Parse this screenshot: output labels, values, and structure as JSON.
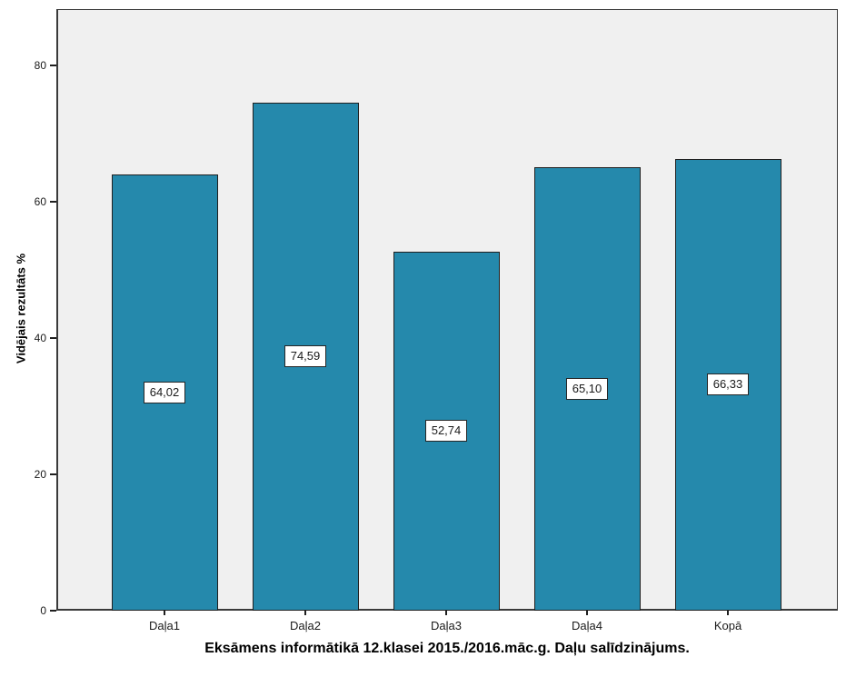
{
  "chart_data": {
    "type": "bar",
    "categories": [
      "Daļa1",
      "Daļa2",
      "Daļa3",
      "Daļa4",
      "Kopā"
    ],
    "values": [
      64.02,
      74.59,
      52.74,
      65.1,
      66.33
    ],
    "value_labels": [
      "64,02",
      "74,59",
      "52,74",
      "65,10",
      "66,33"
    ],
    "title": "Eksāmens informātikā 12.klasei 2015./2016.māc.g. Daļu salīdzinājums.",
    "xlabel": "",
    "ylabel": "Vidējais rezultāts %",
    "ylim": [
      0,
      88.3
    ],
    "yticks": [
      0,
      20,
      40,
      60,
      80
    ],
    "grid": false,
    "legend": "none",
    "colors": {
      "bar_fill": "#2589AC",
      "bar_border": "#1f1f1f",
      "plot_background": "#f0f0f0",
      "outer_background": "#ffffff",
      "text": "#000000"
    }
  }
}
